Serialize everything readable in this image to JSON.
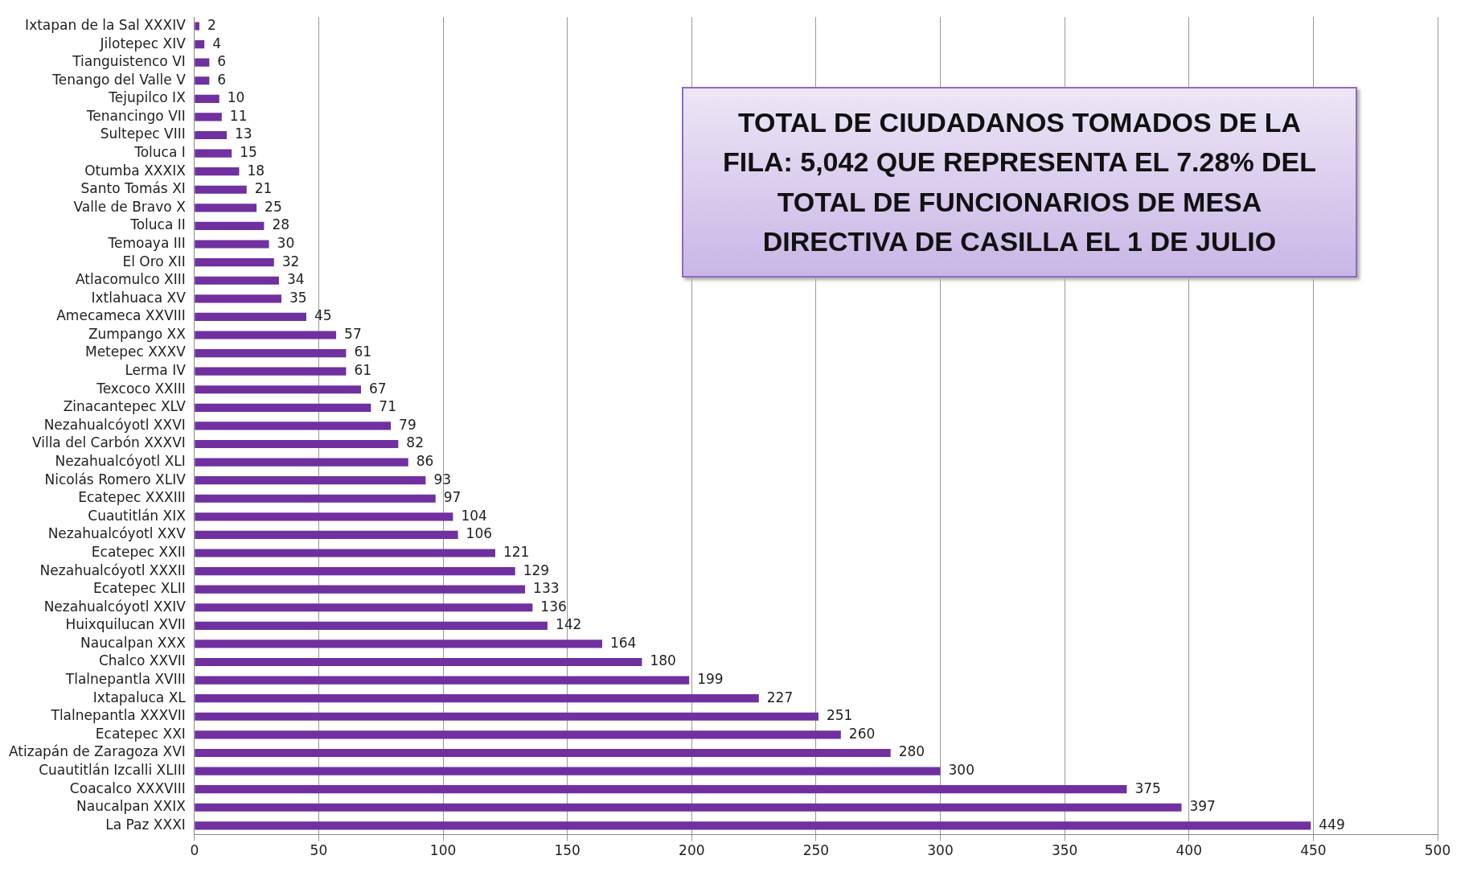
{
  "chart_data": {
    "type": "bar",
    "orientation": "horizontal",
    "categories": [
      "Ixtapan de la Sal XXXIV",
      "Jilotepec XIV",
      "Tianguistenco VI",
      "Tenango del Valle V",
      "Tejupilco IX",
      "Tenancingo VII",
      "Sultepec VIII",
      "Toluca I",
      "Otumba XXXIX",
      "Santo Tomás XI",
      "Valle de Bravo X",
      "Toluca II",
      "Temoaya III",
      "El Oro XII",
      "Atlacomulco XIII",
      "Ixtlahuaca XV",
      "Amecameca XXVIII",
      "Zumpango XX",
      "Metepec XXXV",
      "Lerma IV",
      "Texcoco XXIII",
      "Zinacantepec XLV",
      "Nezahualcóyotl XXVI",
      "Villa del Carbón XXXVI",
      "Nezahualcóyotl XLI",
      "Nicolás Romero XLIV",
      "Ecatepec XXXIII",
      "Cuautitlán XIX",
      "Nezahualcóyotl XXV",
      "Ecatepec XXII",
      "Nezahualcóyotl XXXII",
      "Ecatepec XLII",
      "Nezahualcóyotl XXIV",
      "Huixquilucan XVII",
      "Naucalpan XXX",
      "Chalco XXVII",
      "Tlalnepantla XVIII",
      "Ixtapaluca XL",
      "Tlalnepantla XXXVII",
      "Ecatepec XXI",
      "Atizapán de Zaragoza XVI",
      "Cuautitlán Izcalli XLIII",
      "Coacalco XXXVIII",
      "Naucalpan XXIX",
      "La Paz XXXI"
    ],
    "values": [
      2,
      4,
      6,
      6,
      10,
      11,
      13,
      15,
      18,
      21,
      25,
      28,
      30,
      32,
      34,
      35,
      45,
      57,
      61,
      61,
      67,
      71,
      79,
      82,
      86,
      93,
      97,
      104,
      106,
      121,
      129,
      133,
      136,
      142,
      164,
      180,
      199,
      227,
      251,
      260,
      280,
      300,
      375,
      397,
      449
    ],
    "color": "#7030a0",
    "xlim": [
      0,
      500
    ],
    "xticks": [
      0,
      50,
      100,
      150,
      200,
      250,
      300,
      350,
      400,
      450,
      500
    ],
    "grid": "x",
    "legend": false,
    "data_labels": true,
    "annotations": [
      "TOTAL DE CIUDADANOS TOMADOS DE LA FILA: 5,042 QUE REPRESENTA EL 7.28% DEL TOTAL DE FUNCIONARIOS DE MESA DIRECTIVA DE CASILLA EL 1 DE JULIO"
    ]
  }
}
